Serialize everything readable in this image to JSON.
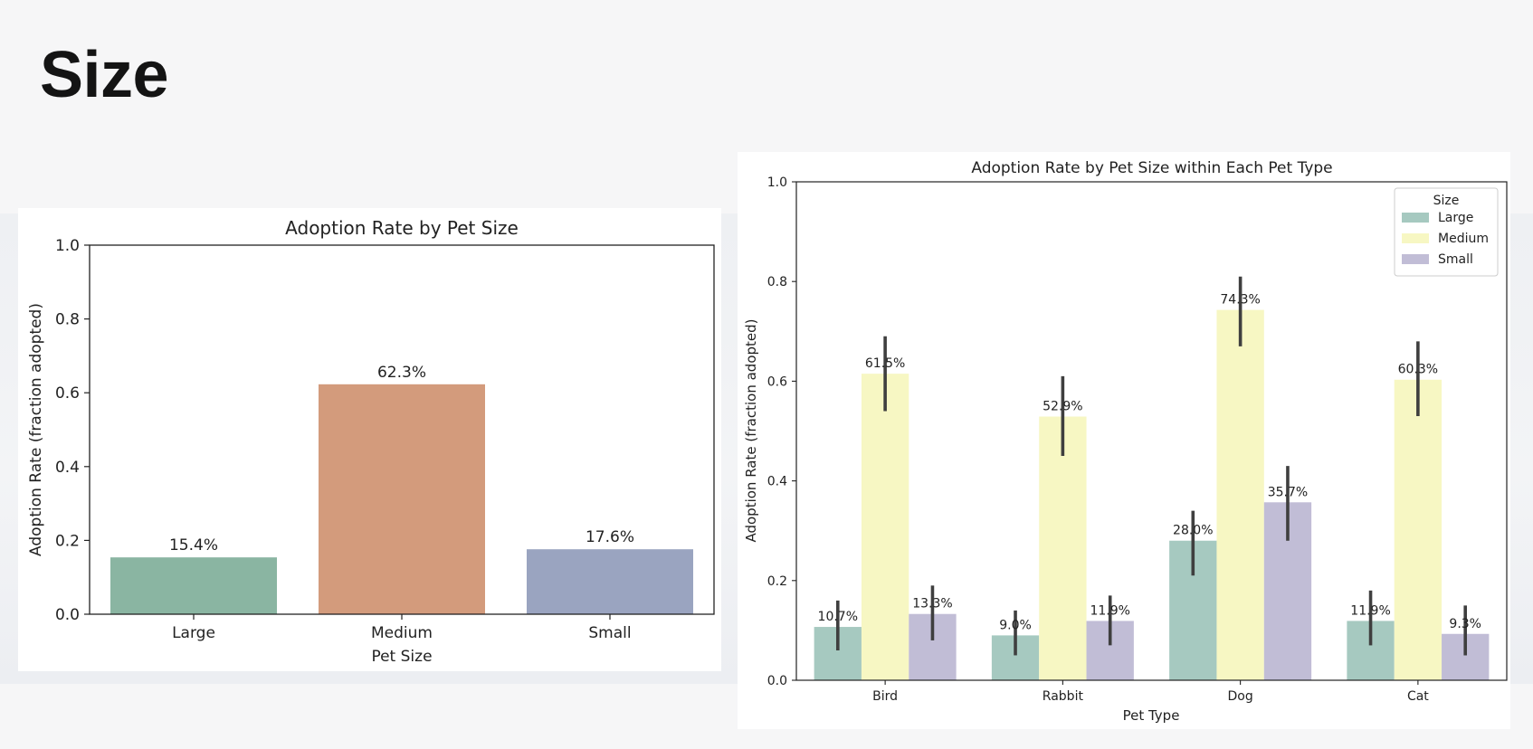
{
  "slide": {
    "title": "Size"
  },
  "chart_data": [
    {
      "type": "bar",
      "title": "Adoption Rate by Pet Size",
      "xlabel": "Pet Size",
      "ylabel": "Adoption Rate (fraction adopted)",
      "categories": [
        "Large",
        "Medium",
        "Small"
      ],
      "values": [
        0.154,
        0.623,
        0.176
      ],
      "data_labels": [
        "15.4%",
        "62.3%",
        "17.6%"
      ],
      "colors": [
        "#8ab5a2",
        "#d39b7c",
        "#9aa4c0"
      ],
      "ylim": [
        0,
        1.0
      ],
      "yticks": [
        "0.0",
        "0.2",
        "0.4",
        "0.6",
        "0.8",
        "1.0"
      ],
      "grid": false
    },
    {
      "type": "bar",
      "title": "Adoption Rate by Pet Size within Each Pet Type",
      "xlabel": "Pet Type",
      "ylabel": "Adoption Rate (fraction adopted)",
      "categories": [
        "Bird",
        "Rabbit",
        "Dog",
        "Cat"
      ],
      "legend": {
        "title": "Size",
        "position": "top-right"
      },
      "series": [
        {
          "name": "Large",
          "color": "#a6c9c0",
          "values": [
            0.107,
            0.09,
            0.28,
            0.119
          ],
          "data_labels": [
            "10.7%",
            "9.0%",
            "28.0%",
            "11.9%"
          ],
          "ci": [
            [
              0.06,
              0.16
            ],
            [
              0.05,
              0.14
            ],
            [
              0.21,
              0.34
            ],
            [
              0.07,
              0.18
            ]
          ]
        },
        {
          "name": "Medium",
          "color": "#f7f7c3",
          "values": [
            0.615,
            0.529,
            0.743,
            0.603
          ],
          "data_labels": [
            "61.5%",
            "52.9%",
            "74.3%",
            "60.3%"
          ],
          "ci": [
            [
              0.54,
              0.69
            ],
            [
              0.45,
              0.61
            ],
            [
              0.67,
              0.81
            ],
            [
              0.53,
              0.68
            ]
          ]
        },
        {
          "name": "Small",
          "color": "#c1bdd6",
          "values": [
            0.133,
            0.119,
            0.357,
            0.093
          ],
          "data_labels": [
            "13.3%",
            "11.9%",
            "35.7%",
            "9.3%"
          ],
          "ci": [
            [
              0.08,
              0.19
            ],
            [
              0.07,
              0.17
            ],
            [
              0.28,
              0.43
            ],
            [
              0.05,
              0.15
            ]
          ]
        }
      ],
      "ylim": [
        0,
        1.0
      ],
      "yticks": [
        "0.0",
        "0.2",
        "0.4",
        "0.6",
        "0.8",
        "1.0"
      ],
      "grid": false
    }
  ]
}
